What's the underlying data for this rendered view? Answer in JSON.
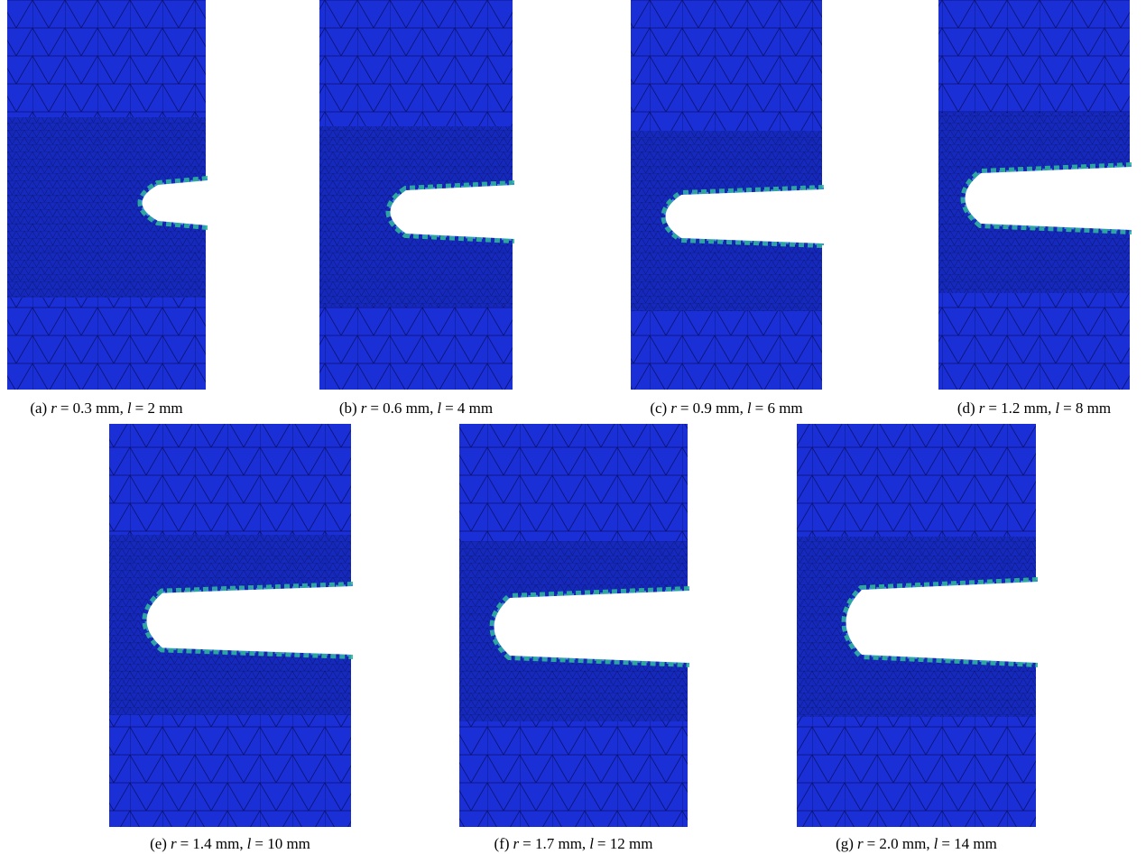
{
  "figure": {
    "panels": [
      {
        "tag": "(a)",
        "r": "r",
        "r_value": "= 0.3 mm,",
        "l": "l",
        "l_value": "= 2 mm"
      },
      {
        "tag": "(b)",
        "r": "r",
        "r_value": "= 0.6 mm,",
        "l": "l",
        "l_value": "= 4 mm"
      },
      {
        "tag": "(c)",
        "r": "r",
        "r_value": "= 0.9 mm,",
        "l": "l",
        "l_value": "= 6 mm"
      },
      {
        "tag": "(d)",
        "r": "r",
        "r_value": "= 1.2 mm,",
        "l": "l",
        "l_value": "= 8 mm"
      },
      {
        "tag": "(e)",
        "r": "r",
        "r_value": "= 1.4 mm,",
        "l": "l",
        "l_value": "= 10 mm"
      },
      {
        "tag": "(f)",
        "r": "r",
        "r_value": "= 1.7 mm,",
        "l": "l",
        "l_value": "= 12 mm"
      },
      {
        "tag": "(g)",
        "r": "r",
        "r_value": "= 2.0 mm,",
        "l": "l",
        "l_value": "= 14 mm"
      }
    ]
  }
}
